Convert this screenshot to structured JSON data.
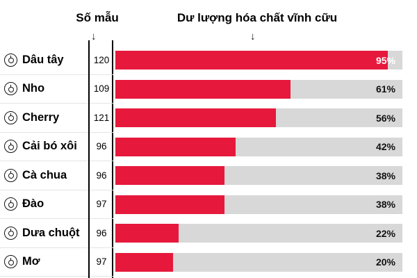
{
  "header": {
    "samples_label": "Số mẫu",
    "bars_label": "Dư lượng hóa chất vĩnh cữu",
    "arrow": "↓"
  },
  "colors": {
    "bar": "#e6193c",
    "track": "#d8d8d8"
  },
  "chart_data": {
    "type": "bar",
    "title": "Dư lượng hóa chất vĩnh cữu",
    "xlabel": "Dư lượng hóa chất vĩnh cữu (%)",
    "ylabel": "",
    "legend": null,
    "xlim": [
      0,
      100
    ],
    "categories": [
      "Dâu tây",
      "Nho",
      "Cherry",
      "Cải bó xôi",
      "Cà chua",
      "Đào",
      "Dưa chuột",
      "Mơ"
    ],
    "samples_header": "Số mẫu",
    "series": [
      {
        "name": "Số mẫu",
        "values": [
          120,
          109,
          121,
          96,
          96,
          97,
          96,
          97
        ]
      },
      {
        "name": "Dư lượng hóa chất vĩnh cữu (%)",
        "values": [
          95,
          61,
          56,
          42,
          38,
          38,
          22,
          20
        ]
      }
    ],
    "rows": [
      {
        "label": "Dâu tây",
        "samples": 120,
        "value": 95,
        "percent": "95%",
        "percent_color": "#ffffff"
      },
      {
        "label": "Nho",
        "samples": 109,
        "value": 61,
        "percent": "61%",
        "percent_color": "#111111"
      },
      {
        "label": "Cherry",
        "samples": 121,
        "value": 56,
        "percent": "56%",
        "percent_color": "#111111"
      },
      {
        "label": "Cải bó xôi",
        "samples": 96,
        "value": 42,
        "percent": "42%",
        "percent_color": "#111111"
      },
      {
        "label": "Cà chua",
        "samples": 96,
        "value": 38,
        "percent": "38%",
        "percent_color": "#111111"
      },
      {
        "label": "Đào",
        "samples": 97,
        "value": 38,
        "percent": "38%",
        "percent_color": "#111111"
      },
      {
        "label": "Dưa chuột",
        "samples": 96,
        "value": 22,
        "percent": "22%",
        "percent_color": "#111111"
      },
      {
        "label": "Mơ",
        "samples": 97,
        "value": 20,
        "percent": "20%",
        "percent_color": "#111111"
      }
    ]
  }
}
